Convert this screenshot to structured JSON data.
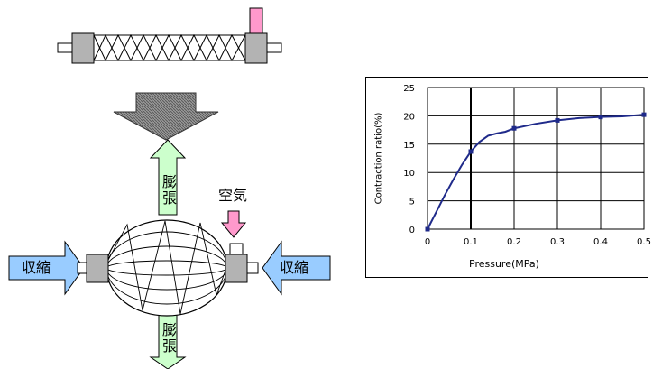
{
  "diagram": {
    "expand_label_top": "膨張",
    "expand_label_bottom": "膨張",
    "contract_label_left": "収縮",
    "contract_label_right": "収縮",
    "air_label": "空気",
    "colors": {
      "expand_arrow": "#ccffcc",
      "contract_arrow": "#99ccff",
      "air_arrow": "#ff99cc",
      "fitting": "#b3b3b3",
      "down_arrow": "#808080"
    }
  },
  "chart_data": {
    "type": "line",
    "xlabel": "Pressure(MPa)",
    "ylabel": "Contraction ratio(%)",
    "xlim": [
      0,
      0.5
    ],
    "ylim": [
      0,
      25
    ],
    "xticks": [
      "0",
      "0.1",
      "0.2",
      "0.3",
      "0.4",
      "0.5"
    ],
    "yticks": [
      "0",
      "5",
      "10",
      "15",
      "20",
      "25"
    ],
    "grid": true,
    "series": [
      {
        "color": "#1f2a8a",
        "x": [
          0,
          0.02,
          0.04,
          0.06,
          0.08,
          0.1,
          0.12,
          0.14,
          0.16,
          0.18,
          0.2,
          0.25,
          0.3,
          0.35,
          0.4,
          0.45,
          0.5
        ],
        "y": [
          0,
          3,
          6,
          8.8,
          11.4,
          13.7,
          15.4,
          16.5,
          16.9,
          17.2,
          17.8,
          18.6,
          19.2,
          19.6,
          19.8,
          19.9,
          20.2
        ]
      }
    ],
    "markers_x": [
      0,
      0.1,
      0.2,
      0.3,
      0.4,
      0.5
    ]
  }
}
